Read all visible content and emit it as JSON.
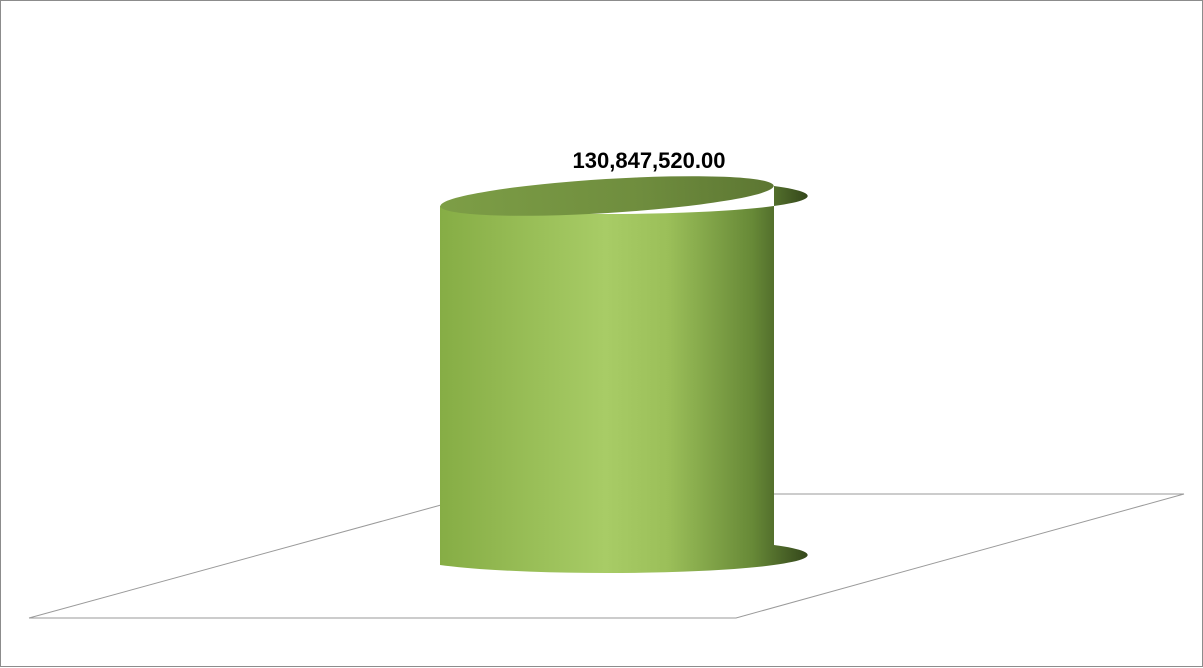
{
  "chart_data": {
    "type": "bar",
    "categories": [
      ""
    ],
    "series": [
      {
        "values": [
          130847520.0
        ]
      }
    ],
    "data_labels": [
      "130,847,520.00"
    ],
    "ylim": [
      0,
      130847520.0
    ],
    "grid": false,
    "legend": "none",
    "colors": {
      "bar_light": "#a8cc66",
      "bar_mid": "#8fb552",
      "bar_dark": "#3d5420",
      "top_fill": "#6f8d3e",
      "floor_stroke": "#9a9a9a",
      "frame_stroke": "#8c8c8c"
    }
  }
}
